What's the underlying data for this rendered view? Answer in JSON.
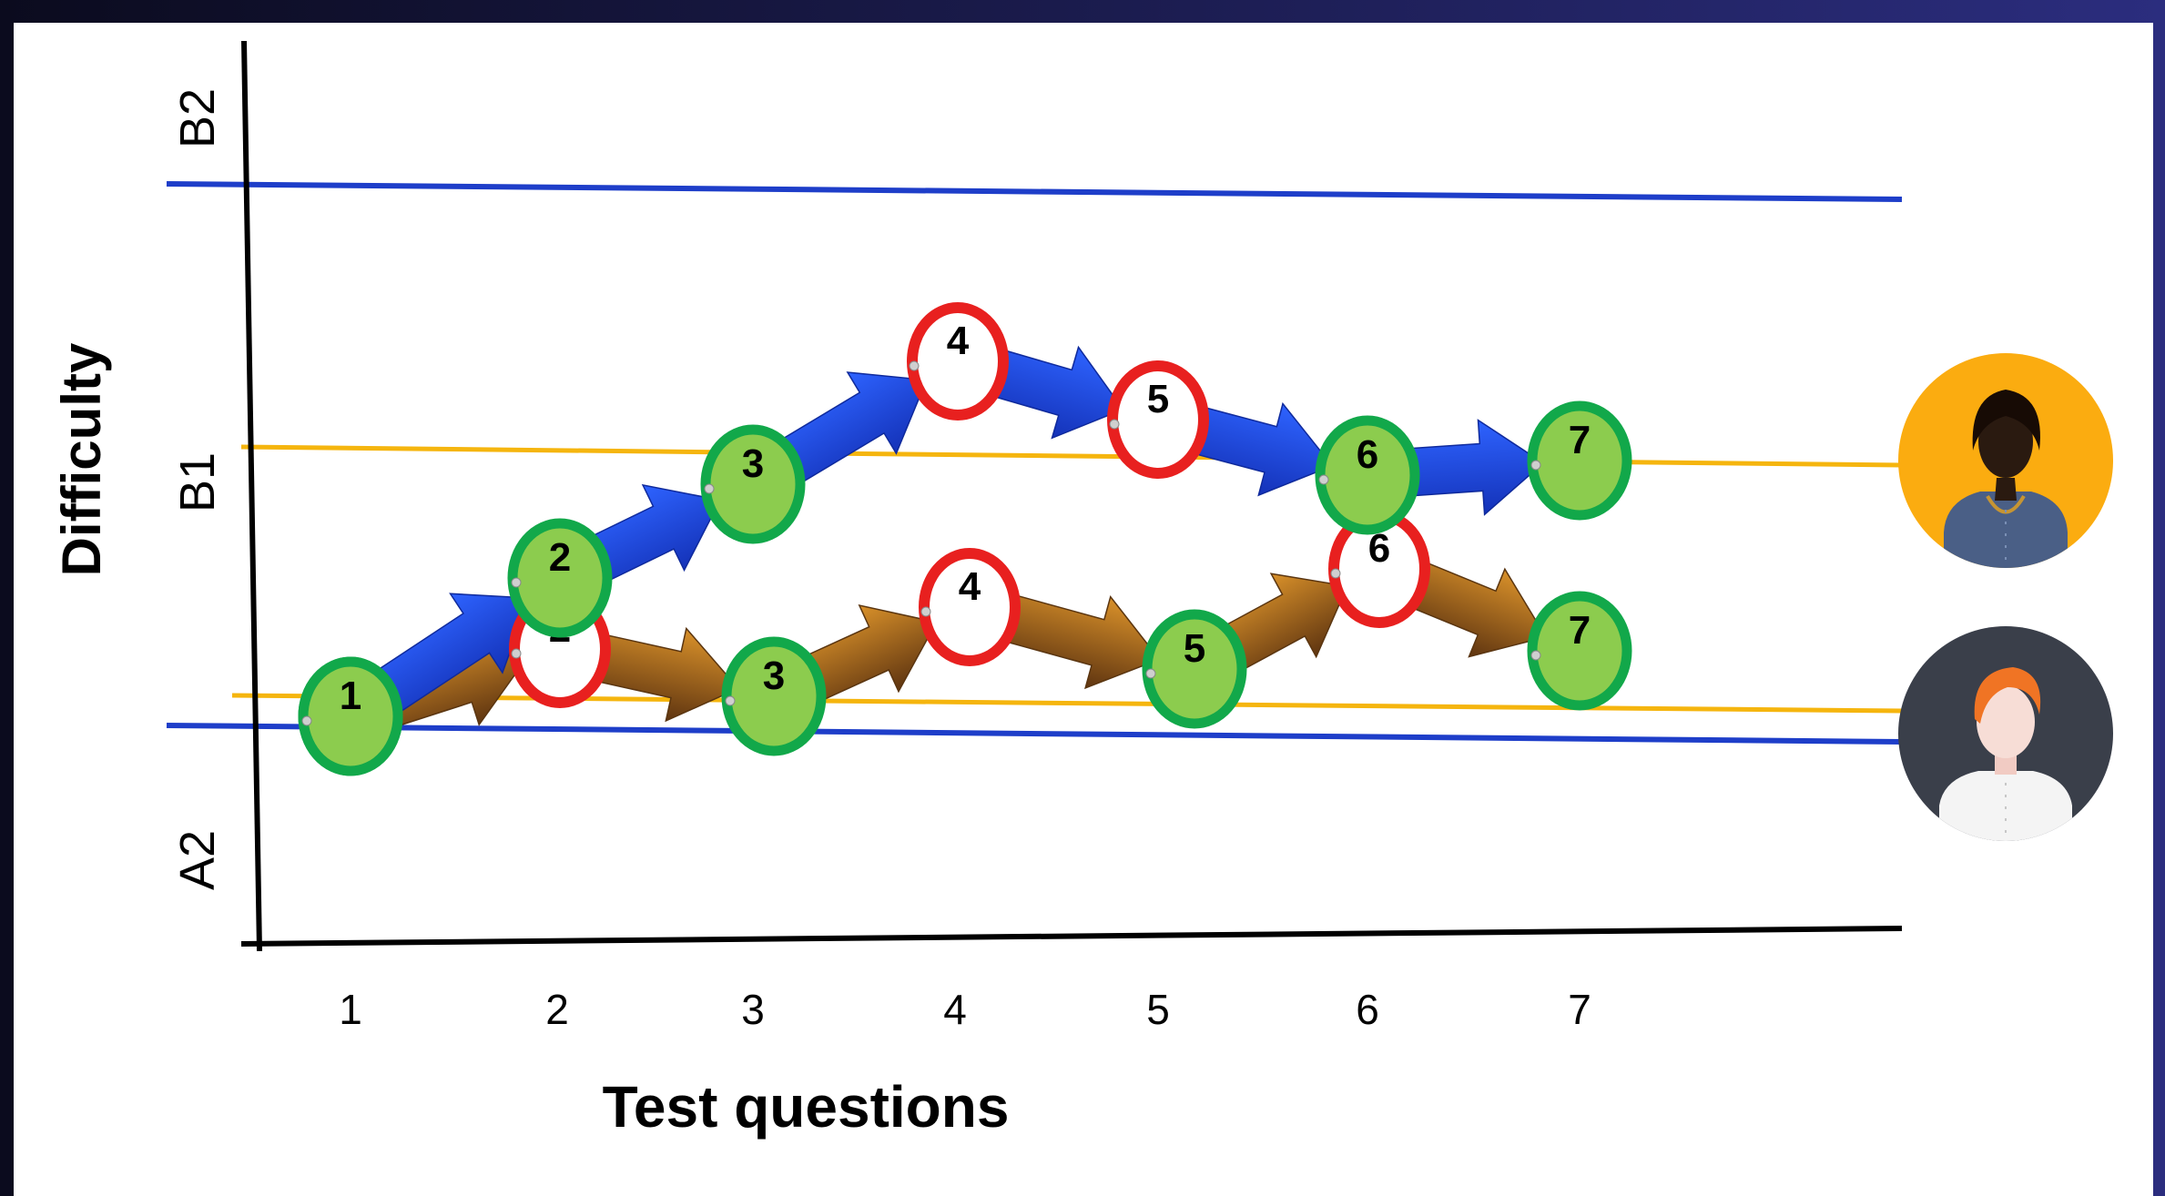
{
  "colors": {
    "border_blue": "#1e3ec9",
    "threshold_gold": "#f5b50e",
    "correct_fill": "#8ccc4e",
    "correct_ring": "#12a84a",
    "incorrect_ring": "#e8201f",
    "arrow_blue": "#1b3fd8",
    "arrow_brown": "#a8611a",
    "avatar_female_bg": "#fbac10",
    "avatar_male_bg": "#3a3f4a"
  },
  "y_axis": {
    "title": "Difficulty",
    "levels": [
      "B2",
      "B1",
      "A2"
    ]
  },
  "x_axis": {
    "title": "Test questions",
    "ticks": [
      "1",
      "2",
      "3",
      "4",
      "5",
      "6",
      "7"
    ]
  },
  "paths": [
    {
      "avatar": "female-avatar-icon",
      "arrow_color": "blue",
      "nodes": [
        {
          "label": "1",
          "result": "correct"
        },
        {
          "label": "2",
          "result": "correct"
        },
        {
          "label": "3",
          "result": "correct"
        },
        {
          "label": "4",
          "result": "incorrect"
        },
        {
          "label": "5",
          "result": "incorrect"
        },
        {
          "label": "6",
          "result": "correct"
        },
        {
          "label": "7",
          "result": "correct"
        }
      ]
    },
    {
      "avatar": "male-avatar-icon",
      "arrow_color": "brown",
      "nodes": [
        {
          "label": "1",
          "result": "correct"
        },
        {
          "label": "2",
          "result": "incorrect"
        },
        {
          "label": "3",
          "result": "correct"
        },
        {
          "label": "4",
          "result": "incorrect"
        },
        {
          "label": "5",
          "result": "correct"
        },
        {
          "label": "6",
          "result": "incorrect"
        },
        {
          "label": "7",
          "result": "correct"
        }
      ]
    }
  ]
}
